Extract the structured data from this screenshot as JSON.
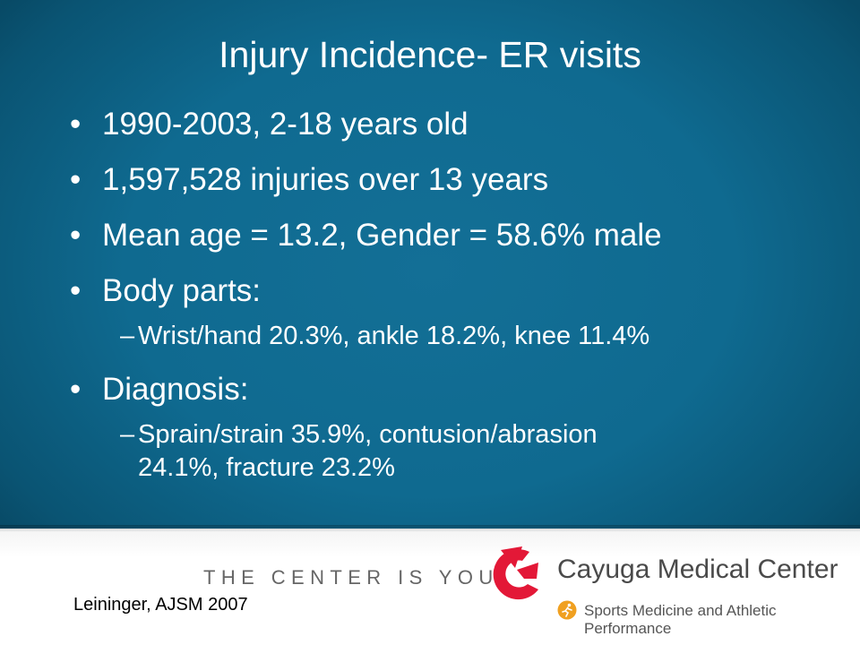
{
  "slide": {
    "title": "Injury Incidence- ER visits",
    "bullets": [
      {
        "text": "1990-2003, 2-18 years old"
      },
      {
        "text": "1,597,528 injuries over 13 years"
      },
      {
        "text": "Mean age = 13.2, Gender = 58.6% male"
      },
      {
        "text": "Body parts:",
        "sub": "Wrist/hand 20.3%, ankle 18.2%, knee 11.4%"
      },
      {
        "text": "Diagnosis:",
        "sub_line1": "Sprain/strain 35.9%, contusion/abrasion",
        "sub_line2": "24.1%, fracture 23.2%"
      }
    ],
    "bullet_glyph": "•",
    "dash_glyph": "–"
  },
  "footer": {
    "tagline": "THE CENTER IS YOU",
    "citation": "Leininger, AJSM 2007",
    "org_name": "Cayuga Medical Center",
    "org_subtitle": "Sports Medicine and Athletic Performance"
  },
  "colors": {
    "background": "#0f6a90",
    "logo_red": "#e31837",
    "icon_orange": "#f0a020"
  }
}
